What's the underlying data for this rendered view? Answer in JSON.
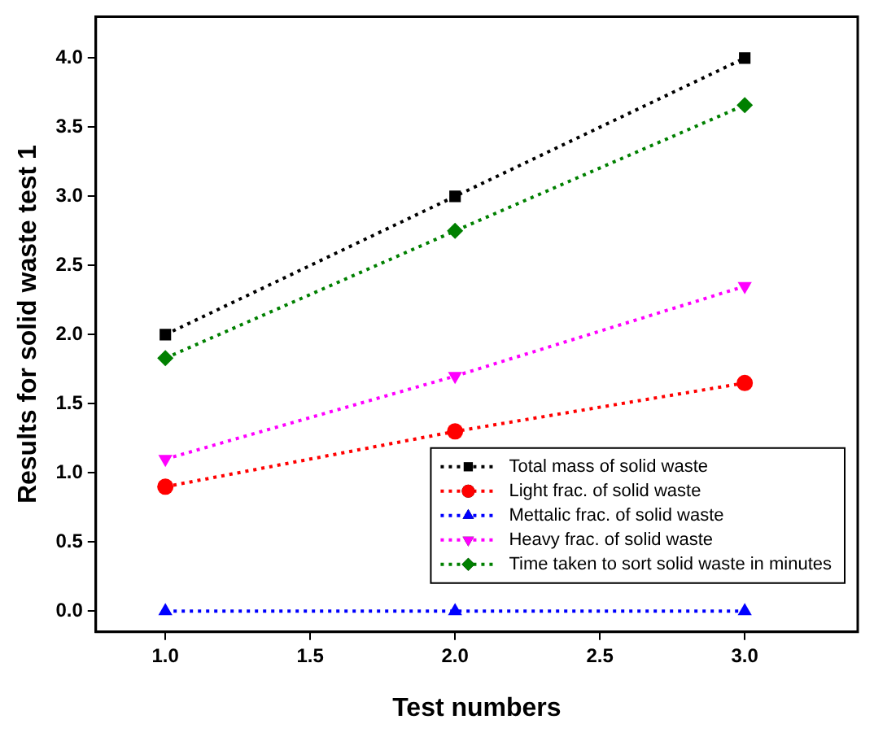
{
  "chart_data": {
    "type": "line",
    "xlabel": "Test numbers",
    "ylabel": "Results for solid waste test 1",
    "x": [
      1.0,
      2.0,
      3.0
    ],
    "series": [
      {
        "name": "Total mass of solid waste",
        "color": "#000000",
        "marker": "square",
        "values": [
          2.0,
          3.0,
          4.0
        ]
      },
      {
        "name": "Light frac. of solid waste",
        "color": "#ff0000",
        "marker": "circle",
        "values": [
          0.9,
          1.3,
          1.65
        ]
      },
      {
        "name": "Mettalic frac. of solid waste",
        "color": "#0000ff",
        "marker": "triangle",
        "values": [
          0.0,
          0.0,
          0.0
        ]
      },
      {
        "name": "Heavy frac. of solid waste",
        "color": "#ff00ff",
        "marker": "triangle_down",
        "values": [
          1.1,
          1.7,
          2.35
        ]
      },
      {
        "name": "Time taken to sort solid waste in minutes",
        "color": "#008000",
        "marker": "diamond",
        "values": [
          1.83,
          2.75,
          3.66
        ]
      }
    ],
    "xlim": [
      0.76,
      3.39
    ],
    "xticks": [
      {
        "value": 1.0,
        "label": "1.0"
      },
      {
        "value": 1.5,
        "label": "1.5"
      },
      {
        "value": 2.0,
        "label": "2.0"
      },
      {
        "value": 2.5,
        "label": "2.5"
      },
      {
        "value": 3.0,
        "label": "3.0"
      }
    ],
    "ylim": [
      -0.15,
      4.3
    ],
    "yticks": [
      {
        "value": 0,
        "label": "0.0"
      },
      {
        "value": 0.5,
        "label": "0.5"
      },
      {
        "value": 1.0,
        "label": "1.0"
      },
      {
        "value": 1.5,
        "label": "1.5"
      },
      {
        "value": 2.0,
        "label": "2.0"
      },
      {
        "value": 2.5,
        "label": "2.5"
      },
      {
        "value": 3.0,
        "label": "3.0"
      },
      {
        "value": 3.5,
        "label": "3.5"
      },
      {
        "value": 4.0,
        "label": "4.0"
      }
    ],
    "grid": false,
    "legend": "bottom right",
    "line_style": "dotted"
  }
}
